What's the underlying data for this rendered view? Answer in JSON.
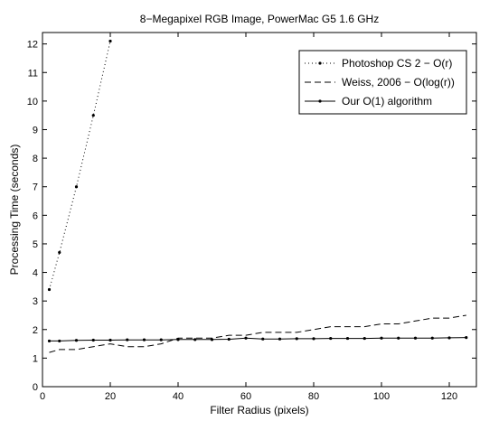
{
  "chart_data": {
    "type": "line",
    "title": "8−Megapixel RGB Image, PowerMac G5 1.6 GHz",
    "xlabel": "Filter Radius (pixels)",
    "ylabel": "Processing Time (seconds)",
    "xlim": [
      0,
      128
    ],
    "ylim": [
      0,
      12.4
    ],
    "x_ticks": [
      0,
      20,
      40,
      60,
      80,
      100,
      120
    ],
    "y_ticks": [
      0,
      1,
      2,
      3,
      4,
      5,
      6,
      7,
      8,
      9,
      10,
      11,
      12
    ],
    "grid": false,
    "legend_position": "top-right",
    "series": [
      {
        "name": "Photoshop CS 2 − O(r)",
        "line_style": "dotted",
        "marker": "dot",
        "x": [
          2,
          5,
          10,
          15,
          20
        ],
        "y": [
          3.4,
          4.7,
          7.0,
          9.5,
          12.1
        ]
      },
      {
        "name": "Weiss, 2006 − O(log(r))",
        "line_style": "dashed",
        "marker": "none",
        "x": [
          2,
          5,
          10,
          15,
          20,
          25,
          30,
          35,
          40,
          45,
          50,
          55,
          60,
          65,
          70,
          75,
          80,
          85,
          90,
          95,
          100,
          105,
          110,
          115,
          120,
          125
        ],
        "y": [
          1.2,
          1.3,
          1.3,
          1.4,
          1.5,
          1.4,
          1.4,
          1.5,
          1.7,
          1.7,
          1.7,
          1.8,
          1.8,
          1.9,
          1.9,
          1.9,
          2.0,
          2.1,
          2.1,
          2.1,
          2.2,
          2.2,
          2.3,
          2.4,
          2.4,
          2.5
        ]
      },
      {
        "name": "Our O(1) algorithm",
        "line_style": "solid",
        "marker": "dot",
        "x": [
          2,
          5,
          10,
          15,
          20,
          25,
          30,
          35,
          40,
          45,
          50,
          55,
          60,
          65,
          70,
          75,
          80,
          85,
          90,
          95,
          100,
          105,
          110,
          115,
          120,
          125
        ],
        "y": [
          1.6,
          1.6,
          1.62,
          1.63,
          1.63,
          1.64,
          1.64,
          1.64,
          1.65,
          1.65,
          1.65,
          1.66,
          1.7,
          1.67,
          1.67,
          1.68,
          1.68,
          1.69,
          1.69,
          1.69,
          1.7,
          1.7,
          1.7,
          1.7,
          1.71,
          1.72
        ]
      }
    ]
  }
}
